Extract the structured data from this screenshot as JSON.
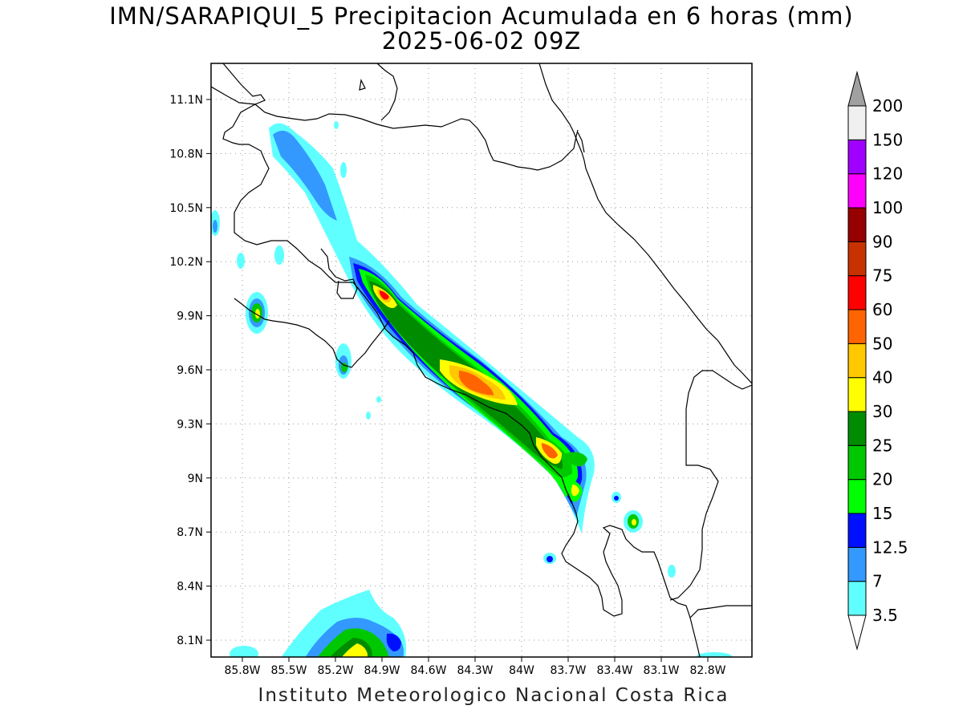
{
  "header": {
    "title": "IMN/SARAPIQUI_5 Precipitacion Acumulada en 6 horas (mm)",
    "subtitle": "2025-06-02 09Z"
  },
  "footer": {
    "credit": "Instituto Meteorologico Nacional Costa Rica"
  },
  "map": {
    "latitude_ticks": [
      "11.1N",
      "10.8N",
      "10.5N",
      "10.2N",
      "9.9N",
      "9.6N",
      "9.3N",
      "9N",
      "8.7N",
      "8.4N",
      "8.1N"
    ],
    "longitude_ticks": [
      "85.8W",
      "85.5W",
      "85.2W",
      "84.9W",
      "84.6W",
      "84.3W",
      "84W",
      "83.7W",
      "83.4W",
      "83.1W",
      "82.8W"
    ],
    "grid": true,
    "colors": {
      "coastline": "#000000",
      "gridline": "#9a9a9a"
    }
  },
  "colorbar": {
    "levels": [
      {
        "label": "3.5",
        "color": "#60ffff"
      },
      {
        "label": "7",
        "color": "#3399ff"
      },
      {
        "label": "12.5",
        "color": "#0010ff"
      },
      {
        "label": "15",
        "color": "#00ff00"
      },
      {
        "label": "20",
        "color": "#00c800"
      },
      {
        "label": "25",
        "color": "#008c00"
      },
      {
        "label": "30",
        "color": "#ffff00"
      },
      {
        "label": "40",
        "color": "#ffc800"
      },
      {
        "label": "50",
        "color": "#ff6400"
      },
      {
        "label": "60",
        "color": "#ff0000"
      },
      {
        "label": "75",
        "color": "#c83200"
      },
      {
        "label": "90",
        "color": "#960000"
      },
      {
        "label": "100",
        "color": "#ff00ff"
      },
      {
        "label": "120",
        "color": "#a000ff"
      },
      {
        "label": "150",
        "color": "#f0f0f0"
      },
      {
        "label": "200",
        "color": "#a0a0a0"
      }
    ]
  }
}
